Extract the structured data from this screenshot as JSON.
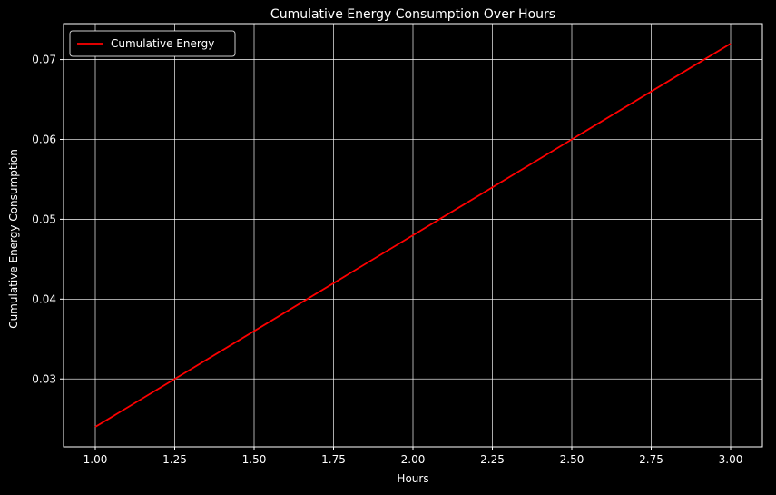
{
  "chart_data": {
    "type": "line",
    "title": "Cumulative Energy Consumption Over Hours",
    "xlabel": "Hours",
    "ylabel": "Cumulative Energy Consumption",
    "xlim": [
      0.9,
      3.1
    ],
    "ylim": [
      0.0215,
      0.0745
    ],
    "xticks": [
      1.0,
      1.25,
      1.5,
      1.75,
      2.0,
      2.25,
      2.5,
      2.75,
      3.0
    ],
    "xtick_labels": [
      "1.00",
      "1.25",
      "1.50",
      "1.75",
      "2.00",
      "2.25",
      "2.50",
      "2.75",
      "3.00"
    ],
    "yticks": [
      0.03,
      0.04,
      0.05,
      0.06,
      0.07
    ],
    "ytick_labels": [
      "0.03",
      "0.04",
      "0.05",
      "0.06",
      "0.07"
    ],
    "grid": true,
    "legend_position": "upper-left",
    "series": [
      {
        "name": "Cumulative Energy",
        "color": "#ff0000",
        "x": [
          1.0,
          2.0,
          3.0
        ],
        "y": [
          0.024,
          0.048,
          0.072
        ]
      }
    ]
  },
  "colors": {
    "background": "#000000",
    "axes": "#ffffff",
    "grid": "#ffffff",
    "text": "#ffffff"
  }
}
